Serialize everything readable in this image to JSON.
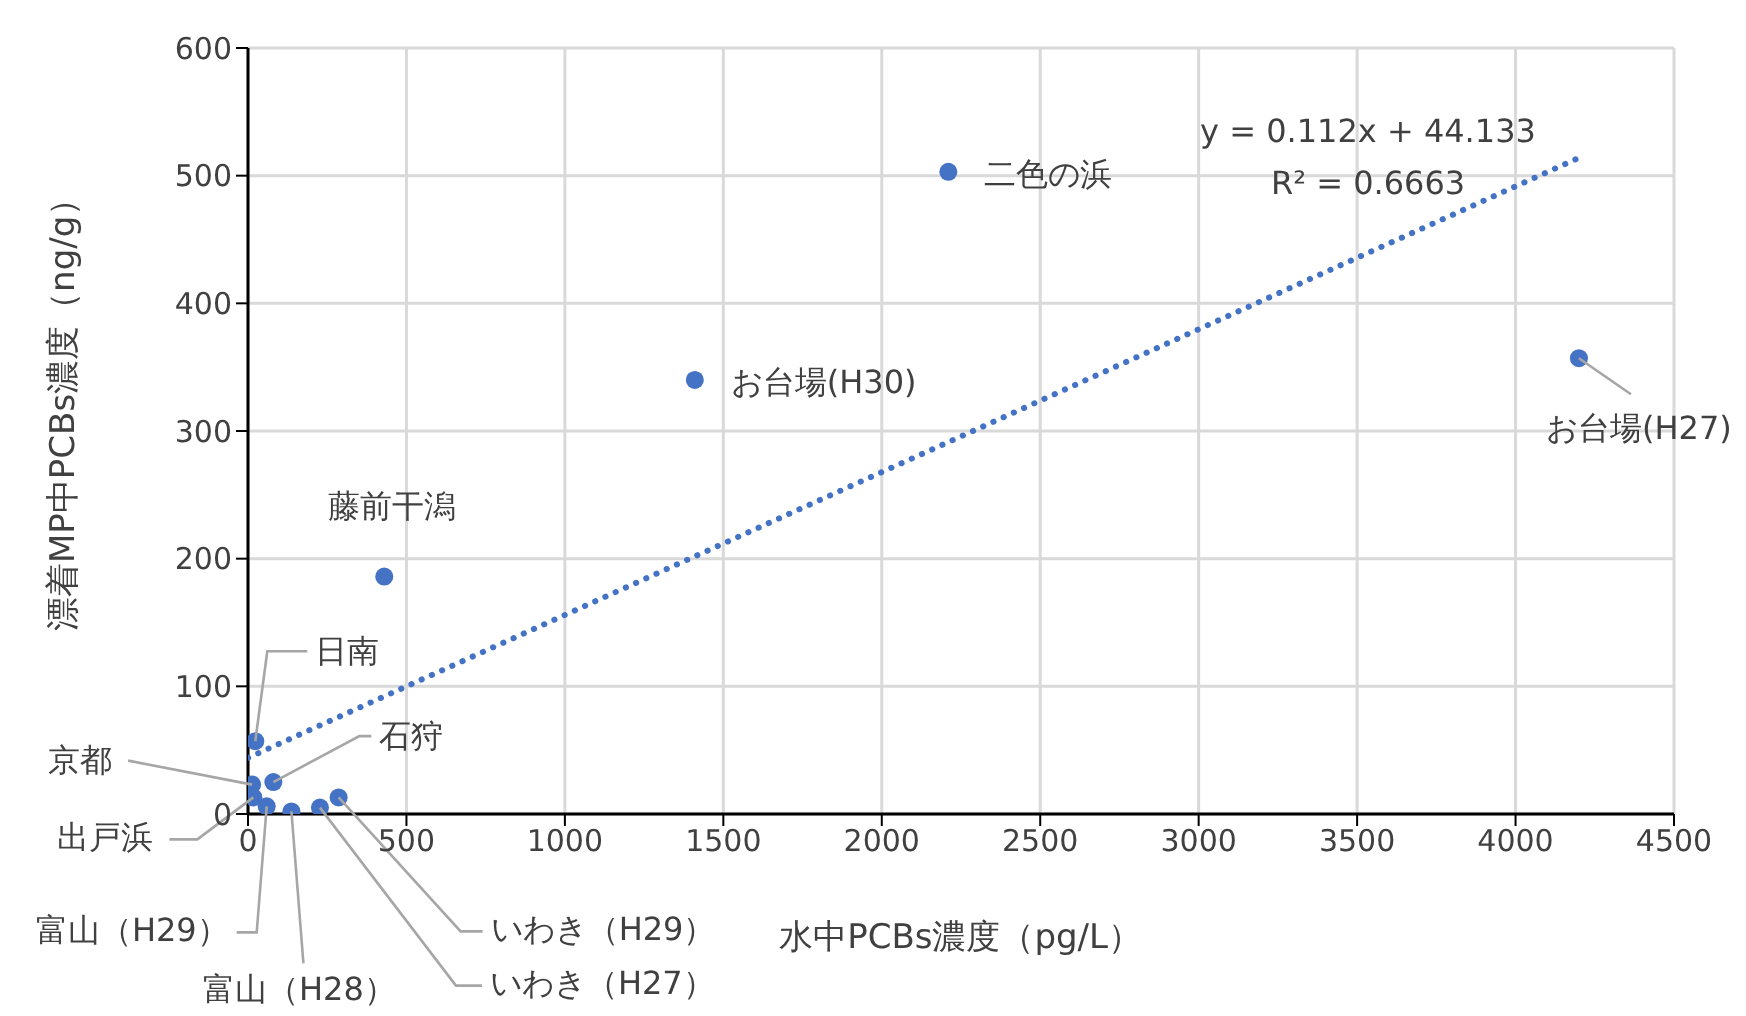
{
  "chart_data": {
    "type": "scatter",
    "xlabel": "水中PCBs濃度（pg/L）",
    "ylabel": "漂着MP中PCBs濃度（ng/g）",
    "xlim": [
      0,
      4500
    ],
    "xticks": [
      0,
      500,
      1000,
      1500,
      2000,
      2500,
      3000,
      3500,
      4000,
      4500
    ],
    "ylim": [
      0,
      600
    ],
    "yticks": [
      0,
      100,
      200,
      300,
      400,
      500,
      600
    ],
    "grid": true,
    "legend": false,
    "series": [
      {
        "type": "scatter",
        "color": "#4472c4",
        "marker": "circle",
        "x": [
          2210,
          1410,
          4200,
          430,
          23,
          13,
          80,
          17,
          59,
          137,
          227,
          286
        ],
        "values": [
          503,
          340,
          357,
          186,
          57,
          23,
          25,
          13,
          6,
          2,
          5,
          13
        ]
      },
      {
        "type": "line",
        "color": "#4472c4",
        "line_style": "dotted",
        "marker": "none",
        "x": [
          0,
          4200
        ],
        "values": [
          44,
          514
        ]
      }
    ],
    "annotations": [
      {
        "text": "二色の浜",
        "x": 2210,
        "y": 503
      },
      {
        "text": "お台場(H30)",
        "x": 1410,
        "y": 340
      },
      {
        "text": "お台場(H27)",
        "x": 4200,
        "y": 357
      },
      {
        "text": "藤前干潟",
        "x": 430,
        "y": 186
      },
      {
        "text": "日南",
        "x": 23,
        "y": 57
      },
      {
        "text": "京都",
        "x": 13,
        "y": 23
      },
      {
        "text": "石狩",
        "x": 80,
        "y": 25
      },
      {
        "text": "出戸浜",
        "x": 17,
        "y": 13
      },
      {
        "text": "富山（H29）",
        "x": 59,
        "y": 6
      },
      {
        "text": "富山（H28）",
        "x": 137,
        "y": 2
      },
      {
        "text": "いわき（H27）",
        "x": 227,
        "y": 5
      },
      {
        "text": "いわき（H29）",
        "x": 286,
        "y": 13
      },
      "y = 0.112x + 44.133",
      "R² = 0.6663"
    ]
  }
}
